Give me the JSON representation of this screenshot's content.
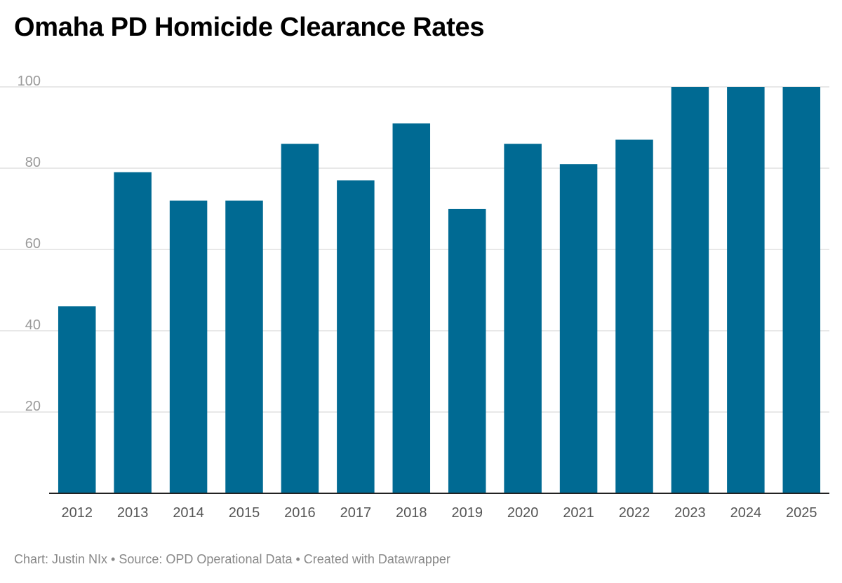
{
  "chart_data": {
    "type": "bar",
    "title": "Omaha PD Homicide Clearance Rates",
    "categories": [
      "2012",
      "2013",
      "2014",
      "2015",
      "2016",
      "2017",
      "2018",
      "2019",
      "2020",
      "2021",
      "2022",
      "2023",
      "2024",
      "2025"
    ],
    "values": [
      46,
      79,
      72,
      72,
      86,
      77,
      91,
      70,
      86,
      81,
      87,
      100,
      100,
      100
    ],
    "ylim": [
      0,
      100
    ],
    "yticks": [
      "20",
      "40",
      "60",
      "80",
      "100"
    ],
    "xlabel": "",
    "ylabel": "",
    "grid": true,
    "bar_color": "#006a93",
    "grid_color": "#e0e0e0",
    "tick_color": "#9a9a9a"
  },
  "footer": {
    "chart_credit": "Chart: Justin NIx",
    "source": "Source: OPD Operational Data",
    "created_with": "Created with Datawrapper",
    "separator": "•"
  }
}
